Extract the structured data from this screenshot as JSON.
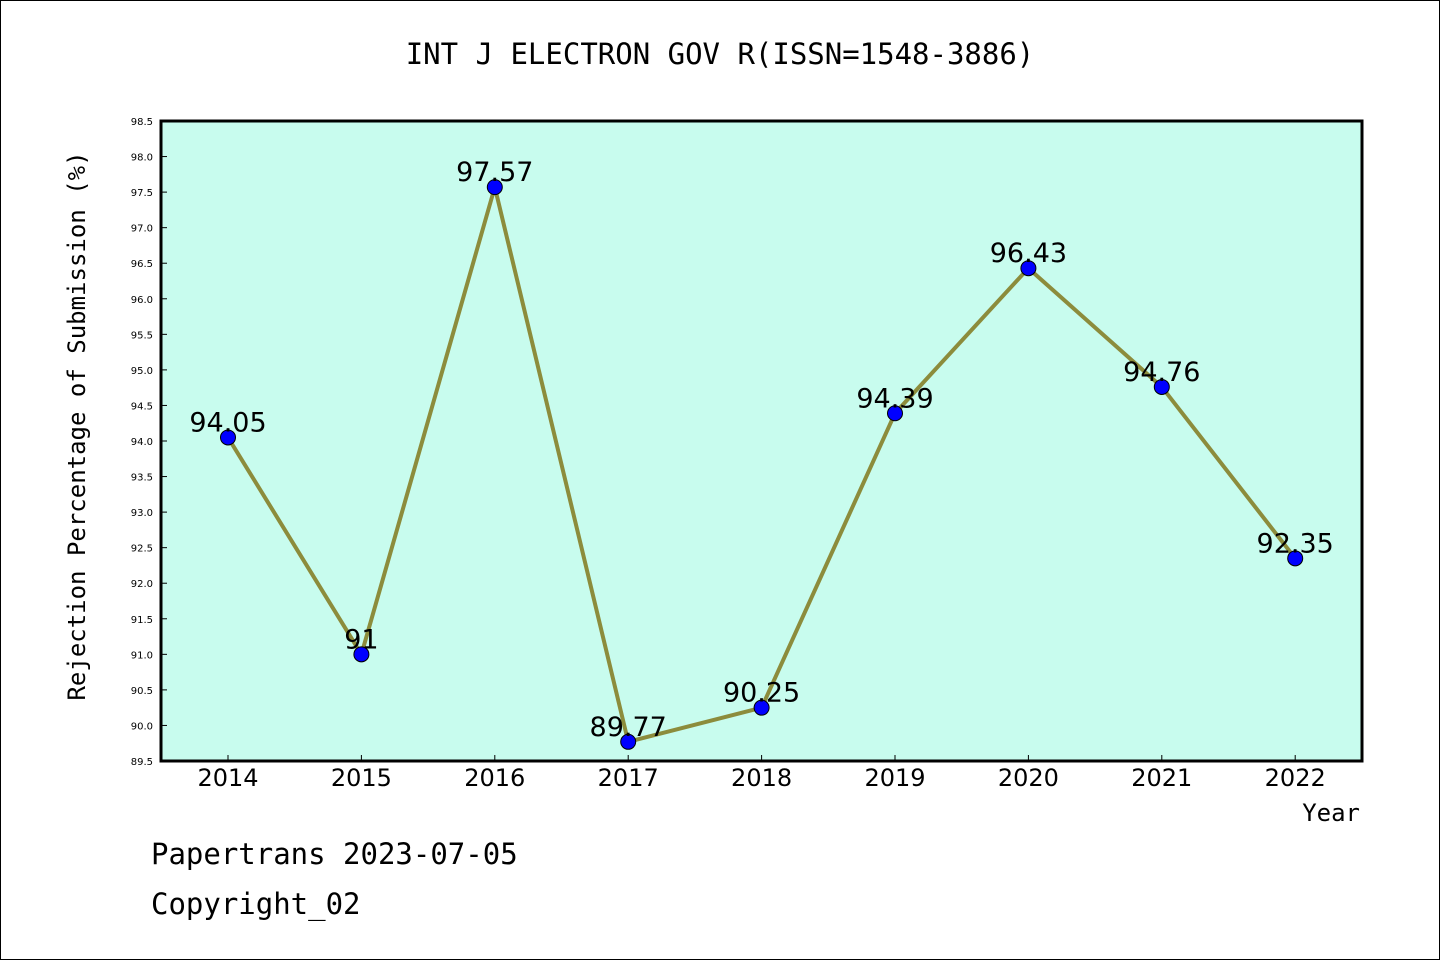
{
  "chart_data": {
    "type": "line",
    "title": "INT J ELECTRON GOV R(ISSN=1548-3886)",
    "xlabel": "Year",
    "ylabel": "Rejection Percentage of Submission (%)",
    "categories": [
      "2014",
      "2015",
      "2016",
      "2017",
      "2018",
      "2019",
      "2020",
      "2021",
      "2022"
    ],
    "series": [
      {
        "values": [
          94.05,
          91,
          97.57,
          89.77,
          90.25,
          94.39,
          96.43,
          94.76,
          92.35
        ],
        "labels": [
          "94.05",
          "91",
          "97.57",
          "89.77",
          "90.25",
          "94.39",
          "96.43",
          "94.76",
          "92.35"
        ]
      }
    ],
    "ylim": [
      89.5,
      98.5
    ],
    "ytick_step": 0.5,
    "grid": false,
    "colors": {
      "plot_background": "#c8fcee",
      "line": "#8c8c3c",
      "marker": "#0000ff"
    }
  },
  "footer": {
    "line1": "Papertrans 2023-07-05",
    "line2": "Copyright_02"
  }
}
